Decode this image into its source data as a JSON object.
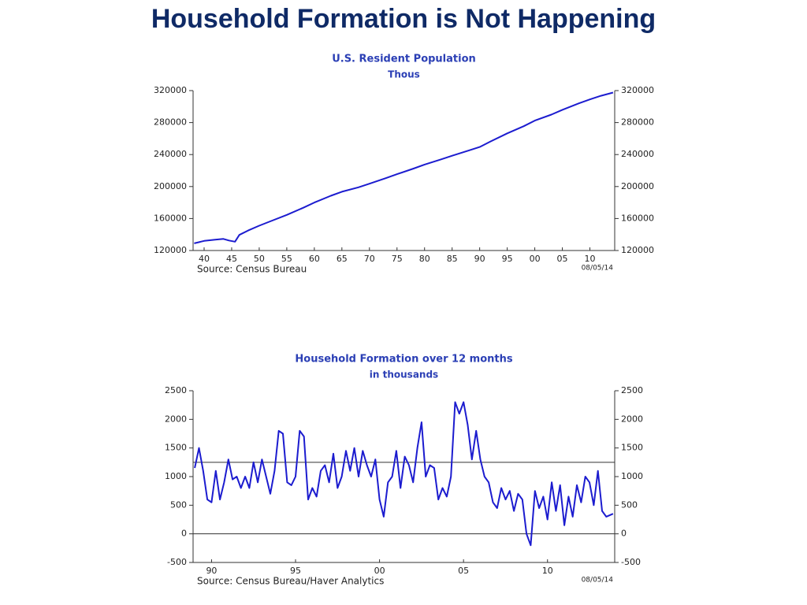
{
  "title": "Household Formation is Not Happening",
  "chart_data": [
    {
      "type": "line",
      "title": "U.S. Resident Population",
      "subtitle": "Thous",
      "source": "Source:  Census Bureau",
      "date": "08/05/14",
      "color": "#1c1ccf",
      "right_axis": true,
      "xlim": [
        1938,
        2014.5
      ],
      "ylim": [
        120000,
        320000
      ],
      "xticks": [
        {
          "value": 1940,
          "label": "40"
        },
        {
          "value": 1945,
          "label": "45"
        },
        {
          "value": 1950,
          "label": "50"
        },
        {
          "value": 1955,
          "label": "55"
        },
        {
          "value": 1960,
          "label": "60"
        },
        {
          "value": 1965,
          "label": "65"
        },
        {
          "value": 1970,
          "label": "70"
        },
        {
          "value": 1975,
          "label": "75"
        },
        {
          "value": 1980,
          "label": "80"
        },
        {
          "value": 1985,
          "label": "85"
        },
        {
          "value": 1990,
          "label": "90"
        },
        {
          "value": 1995,
          "label": "95"
        },
        {
          "value": 2000,
          "label": "00"
        },
        {
          "value": 2005,
          "label": "05"
        },
        {
          "value": 2010,
          "label": "10"
        }
      ],
      "yticks": [
        120000,
        160000,
        200000,
        240000,
        280000,
        320000
      ],
      "x": [
        1938.2,
        1940,
        1942,
        1943.5,
        1944.5,
        1945.6,
        1946.4,
        1948,
        1950,
        1952,
        1955,
        1958,
        1960,
        1963,
        1965,
        1968,
        1970,
        1973,
        1975,
        1978,
        1980,
        1983,
        1985,
        1988,
        1990,
        1992,
        1995,
        1998,
        2000,
        2003,
        2005,
        2008,
        2010,
        2012,
        2014.2
      ],
      "values": [
        129000,
        132000,
        133500,
        134500,
        132500,
        131000,
        139500,
        145000,
        151000,
        156500,
        164500,
        173500,
        180000,
        188500,
        193500,
        199000,
        203500,
        210500,
        215500,
        222500,
        227500,
        234000,
        238500,
        245000,
        249500,
        256500,
        266500,
        275500,
        282500,
        290000,
        296000,
        304000,
        309000,
        313500,
        317500
      ]
    },
    {
      "type": "line",
      "title": "Household Formation over 12 months",
      "subtitle": "in thousands",
      "source": "Source:  Census Bureau/Haver Analytics",
      "date": "08/05/14",
      "color": "#1c1ccf",
      "right_axis": true,
      "reference_lines": [
        0,
        1250
      ],
      "xlim": [
        1988.9,
        2014.0
      ],
      "ylim": [
        -500,
        2500
      ],
      "xticks": [
        {
          "value": 1990,
          "label": "90"
        },
        {
          "value": 1995,
          "label": "95"
        },
        {
          "value": 2000,
          "label": "00"
        },
        {
          "value": 2005,
          "label": "05"
        },
        {
          "value": 2010,
          "label": "10"
        }
      ],
      "yticks": [
        -500,
        0,
        500,
        1000,
        1500,
        2000,
        2500
      ],
      "x": [
        1989.0,
        1989.25,
        1989.5,
        1989.75,
        1990.0,
        1990.25,
        1990.5,
        1990.75,
        1991.0,
        1991.25,
        1991.5,
        1991.75,
        1992.0,
        1992.25,
        1992.5,
        1992.75,
        1993.0,
        1993.25,
        1993.5,
        1993.75,
        1994.0,
        1994.25,
        1994.5,
        1994.75,
        1995.0,
        1995.25,
        1995.5,
        1995.75,
        1996.0,
        1996.25,
        1996.5,
        1996.75,
        1997.0,
        1997.25,
        1997.5,
        1997.75,
        1998.0,
        1998.25,
        1998.5,
        1998.75,
        1999.0,
        1999.25,
        1999.5,
        1999.75,
        2000.0,
        2000.25,
        2000.5,
        2000.75,
        2001.0,
        2001.25,
        2001.5,
        2001.75,
        2002.0,
        2002.25,
        2002.5,
        2002.75,
        2003.0,
        2003.25,
        2003.5,
        2003.75,
        2004.0,
        2004.25,
        2004.5,
        2004.75,
        2005.0,
        2005.25,
        2005.5,
        2005.75,
        2006.0,
        2006.25,
        2006.5,
        2006.75,
        2007.0,
        2007.25,
        2007.5,
        2007.75,
        2008.0,
        2008.25,
        2008.5,
        2008.75,
        2009.0,
        2009.25,
        2009.5,
        2009.75,
        2010.0,
        2010.25,
        2010.5,
        2010.75,
        2011.0,
        2011.25,
        2011.5,
        2011.75,
        2012.0,
        2012.25,
        2012.5,
        2012.75,
        2013.0,
        2013.25,
        2013.5,
        2013.9
      ],
      "values": [
        1150,
        1500,
        1100,
        600,
        550,
        1100,
        600,
        900,
        1300,
        950,
        1000,
        800,
        1000,
        800,
        1250,
        900,
        1300,
        1000,
        700,
        1100,
        1800,
        1750,
        900,
        850,
        1000,
        1800,
        1700,
        600,
        800,
        650,
        1100,
        1200,
        900,
        1400,
        800,
        1000,
        1450,
        1100,
        1500,
        1000,
        1450,
        1200,
        1000,
        1300,
        600,
        300,
        900,
        1000,
        1450,
        800,
        1350,
        1200,
        900,
        1500,
        1950,
        1000,
        1200,
        1150,
        600,
        800,
        650,
        1000,
        2300,
        2100,
        2300,
        1900,
        1300,
        1800,
        1300,
        1000,
        900,
        550,
        450,
        800,
        600,
        750,
        400,
        700,
        600,
        0,
        -200,
        750,
        450,
        650,
        250,
        900,
        400,
        850,
        150,
        650,
        300,
        850,
        550,
        1000,
        900,
        500,
        1100,
        400,
        300,
        350
      ]
    }
  ]
}
